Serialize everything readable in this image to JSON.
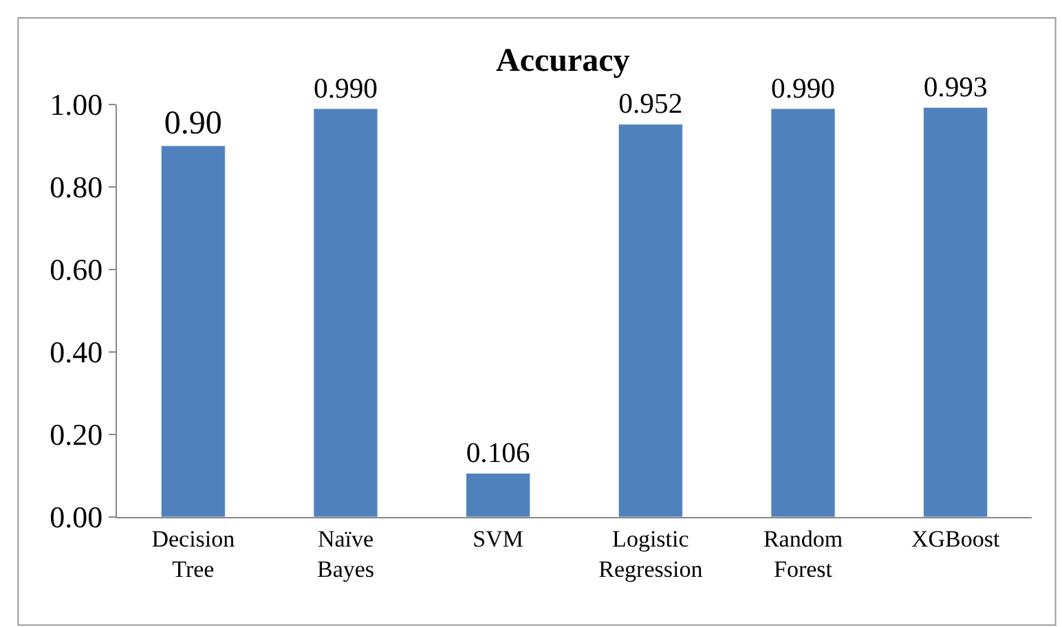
{
  "chart_data": {
    "type": "bar",
    "title": "Accuracy",
    "categories": [
      "Decision Tree",
      "Naïve Bayes",
      "SVM",
      "Logistic Regression",
      "Random Forest",
      "XGBoost"
    ],
    "values": [
      0.9,
      0.99,
      0.106,
      0.952,
      0.99,
      0.993
    ],
    "value_labels": [
      "0.90",
      "0.990",
      "0.106",
      "0.952",
      "0.990",
      "0.993"
    ],
    "color": "#4f81bd",
    "ylim": [
      0,
      1.0
    ],
    "yticks": [
      {
        "value": 0,
        "label": "0.00"
      },
      {
        "value": 0.2,
        "label": "0.20"
      },
      {
        "value": 0.4,
        "label": "0.40"
      },
      {
        "value": 0.6,
        "label": "0.60"
      },
      {
        "value": 0.8,
        "label": "0.80"
      },
      {
        "value": 1.0,
        "label": "1.00"
      }
    ],
    "legend": false
  }
}
